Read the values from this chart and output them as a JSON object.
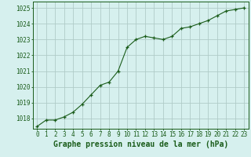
{
  "x": [
    0,
    1,
    2,
    3,
    4,
    5,
    6,
    7,
    8,
    9,
    10,
    11,
    12,
    13,
    14,
    15,
    16,
    17,
    18,
    19,
    20,
    21,
    22,
    23
  ],
  "y": [
    1017.5,
    1017.9,
    1017.9,
    1018.1,
    1018.4,
    1018.9,
    1019.5,
    1020.1,
    1020.3,
    1021.0,
    1022.5,
    1023.0,
    1023.2,
    1023.1,
    1023.0,
    1023.2,
    1023.7,
    1023.8,
    1024.0,
    1024.2,
    1024.5,
    1024.8,
    1024.9,
    1025.0
  ],
  "line_color": "#1a5c1a",
  "marker_color": "#1a5c1a",
  "bg_color": "#d6f0ee",
  "plot_bg_color": "#d6f0ee",
  "grid_color": "#b0ccc8",
  "title": "Graphe pression niveau de la mer (hPa)",
  "ylabel_ticks": [
    1018,
    1019,
    1020,
    1021,
    1022,
    1023,
    1024,
    1025
  ],
  "xlabel_ticks": [
    0,
    1,
    2,
    3,
    4,
    5,
    6,
    7,
    8,
    9,
    10,
    11,
    12,
    13,
    14,
    15,
    16,
    17,
    18,
    19,
    20,
    21,
    22,
    23
  ],
  "ylim": [
    1017.35,
    1025.4
  ],
  "xlim": [
    -0.5,
    23.5
  ],
  "tick_fontsize": 5.5,
  "title_fontsize": 7.0
}
